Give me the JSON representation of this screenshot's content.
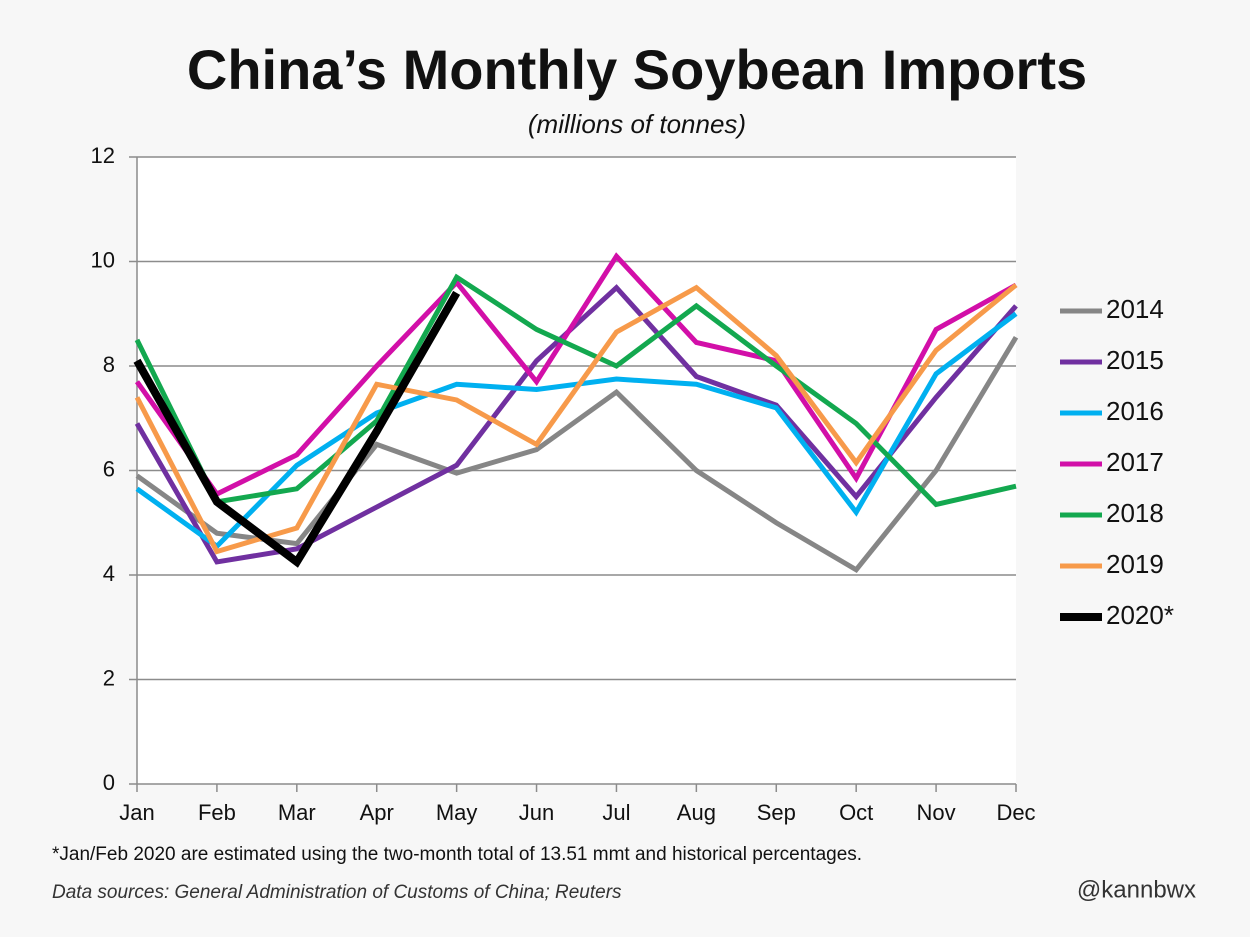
{
  "chart_data": {
    "type": "line",
    "title": "China’s Monthly Soybean Imports",
    "subtitle": "(millions of tonnes)",
    "footnote": "*Jan/Feb 2020 are estimated using the two-month total of 13.51 mmt and historical percentages.",
    "source": "Data sources: General Administration of Customs of China; Reuters",
    "credit": "@kannbwx",
    "categories": [
      "Jan",
      "Feb",
      "Mar",
      "Apr",
      "May",
      "Jun",
      "Jul",
      "Aug",
      "Sep",
      "Oct",
      "Nov",
      "Dec"
    ],
    "ylim": [
      0,
      12
    ],
    "yticks": [
      0,
      2,
      4,
      6,
      8,
      10,
      12
    ],
    "grid": true,
    "legend": "right",
    "series": [
      {
        "name": "2014",
        "color": "#868686",
        "values": [
          5.9,
          4.8,
          4.6,
          6.5,
          5.95,
          6.4,
          7.5,
          6.0,
          5.0,
          4.1,
          6.0,
          8.55
        ]
      },
      {
        "name": "2015",
        "color": "#7030a0",
        "values": [
          6.9,
          4.25,
          4.5,
          5.3,
          6.1,
          8.1,
          9.5,
          7.8,
          7.25,
          5.5,
          7.4,
          9.15
        ]
      },
      {
        "name": "2016",
        "color": "#00b0f0",
        "values": [
          5.65,
          4.55,
          6.1,
          7.1,
          7.65,
          7.55,
          7.75,
          7.65,
          7.2,
          5.2,
          7.85,
          9.0
        ]
      },
      {
        "name": "2017",
        "color": "#d20fa8",
        "values": [
          7.7,
          5.55,
          6.3,
          8.0,
          9.6,
          7.7,
          10.1,
          8.45,
          8.1,
          5.85,
          8.7,
          9.55
        ]
      },
      {
        "name": "2018",
        "color": "#13a84f",
        "values": [
          8.5,
          5.4,
          5.65,
          6.95,
          9.7,
          8.7,
          8.0,
          9.15,
          8.0,
          6.9,
          5.35,
          5.7
        ]
      },
      {
        "name": "2019",
        "color": "#f79a4a",
        "values": [
          7.4,
          4.45,
          4.9,
          7.65,
          7.35,
          6.5,
          8.65,
          9.5,
          8.2,
          6.15,
          8.3,
          9.55
        ]
      },
      {
        "name": "2020*",
        "color": "#000000",
        "values": [
          8.1,
          5.4,
          4.25,
          6.75,
          9.4,
          null,
          null,
          null,
          null,
          null,
          null,
          null
        ]
      }
    ]
  }
}
